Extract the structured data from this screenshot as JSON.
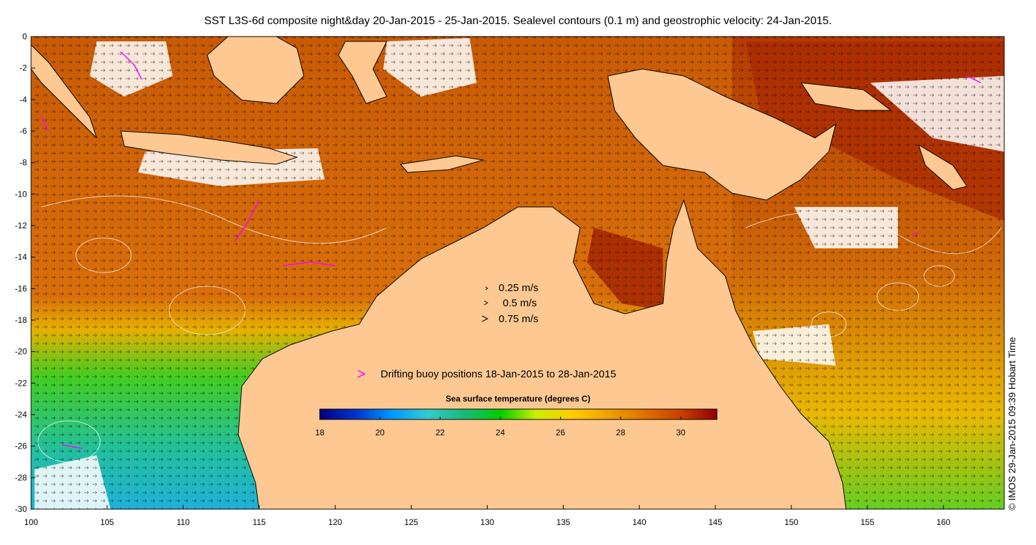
{
  "title": "SST L3S-6d composite night&day 20-Jan-2015 - 25-Jan-2015. Sealevel contours (0.1 m) and geostrophic velocity: 24-Jan-2015.",
  "credit": "© IMOS 29-Jan-2015 09:39 Hobart Time",
  "axes": {
    "x_ticks": [
      "100",
      "105",
      "110",
      "115",
      "120",
      "125",
      "130",
      "135",
      "140",
      "145",
      "150",
      "155",
      "160"
    ],
    "y_ticks": [
      "0",
      "-2",
      "-4",
      "-6",
      "-8",
      "-10",
      "-12",
      "-14",
      "-16",
      "-18",
      "-20",
      "-22",
      "-24",
      "-26",
      "-28",
      "-30"
    ],
    "lon_range": [
      100,
      164
    ],
    "lat_range": [
      -30,
      0
    ]
  },
  "velocity_legend": [
    {
      "label": "0.25 m/s",
      "speed": 0.25
    },
    {
      "label": "0.5 m/s",
      "speed": 0.5
    },
    {
      "label": "0.75 m/s",
      "speed": 0.75
    }
  ],
  "buoy_legend": {
    "label": "Drifting buoy positions 18-Jan-2015 to 28-Jan-2015",
    "color": "#ff00ff"
  },
  "colorbar": {
    "title": "Sea surface temperature (degrees C)",
    "min": 18,
    "max": 31.2,
    "ticks": [
      "18",
      "20",
      "22",
      "24",
      "26",
      "28",
      "30"
    ],
    "stops": [
      "#00007f",
      "#0033cc",
      "#0099ff",
      "#33cccc",
      "#19b87a",
      "#00cc00",
      "#ccee00",
      "#ffcc00",
      "#f0a000",
      "#e07000",
      "#c84000",
      "#900000"
    ]
  },
  "colors": {
    "land": "#fdc891",
    "sst_warm": "#d9700a",
    "sst_hot": "#b03000",
    "sst_cool": "#2ecc40",
    "sst_cold": "#20c0c0",
    "cloud": "#ffffff"
  }
}
